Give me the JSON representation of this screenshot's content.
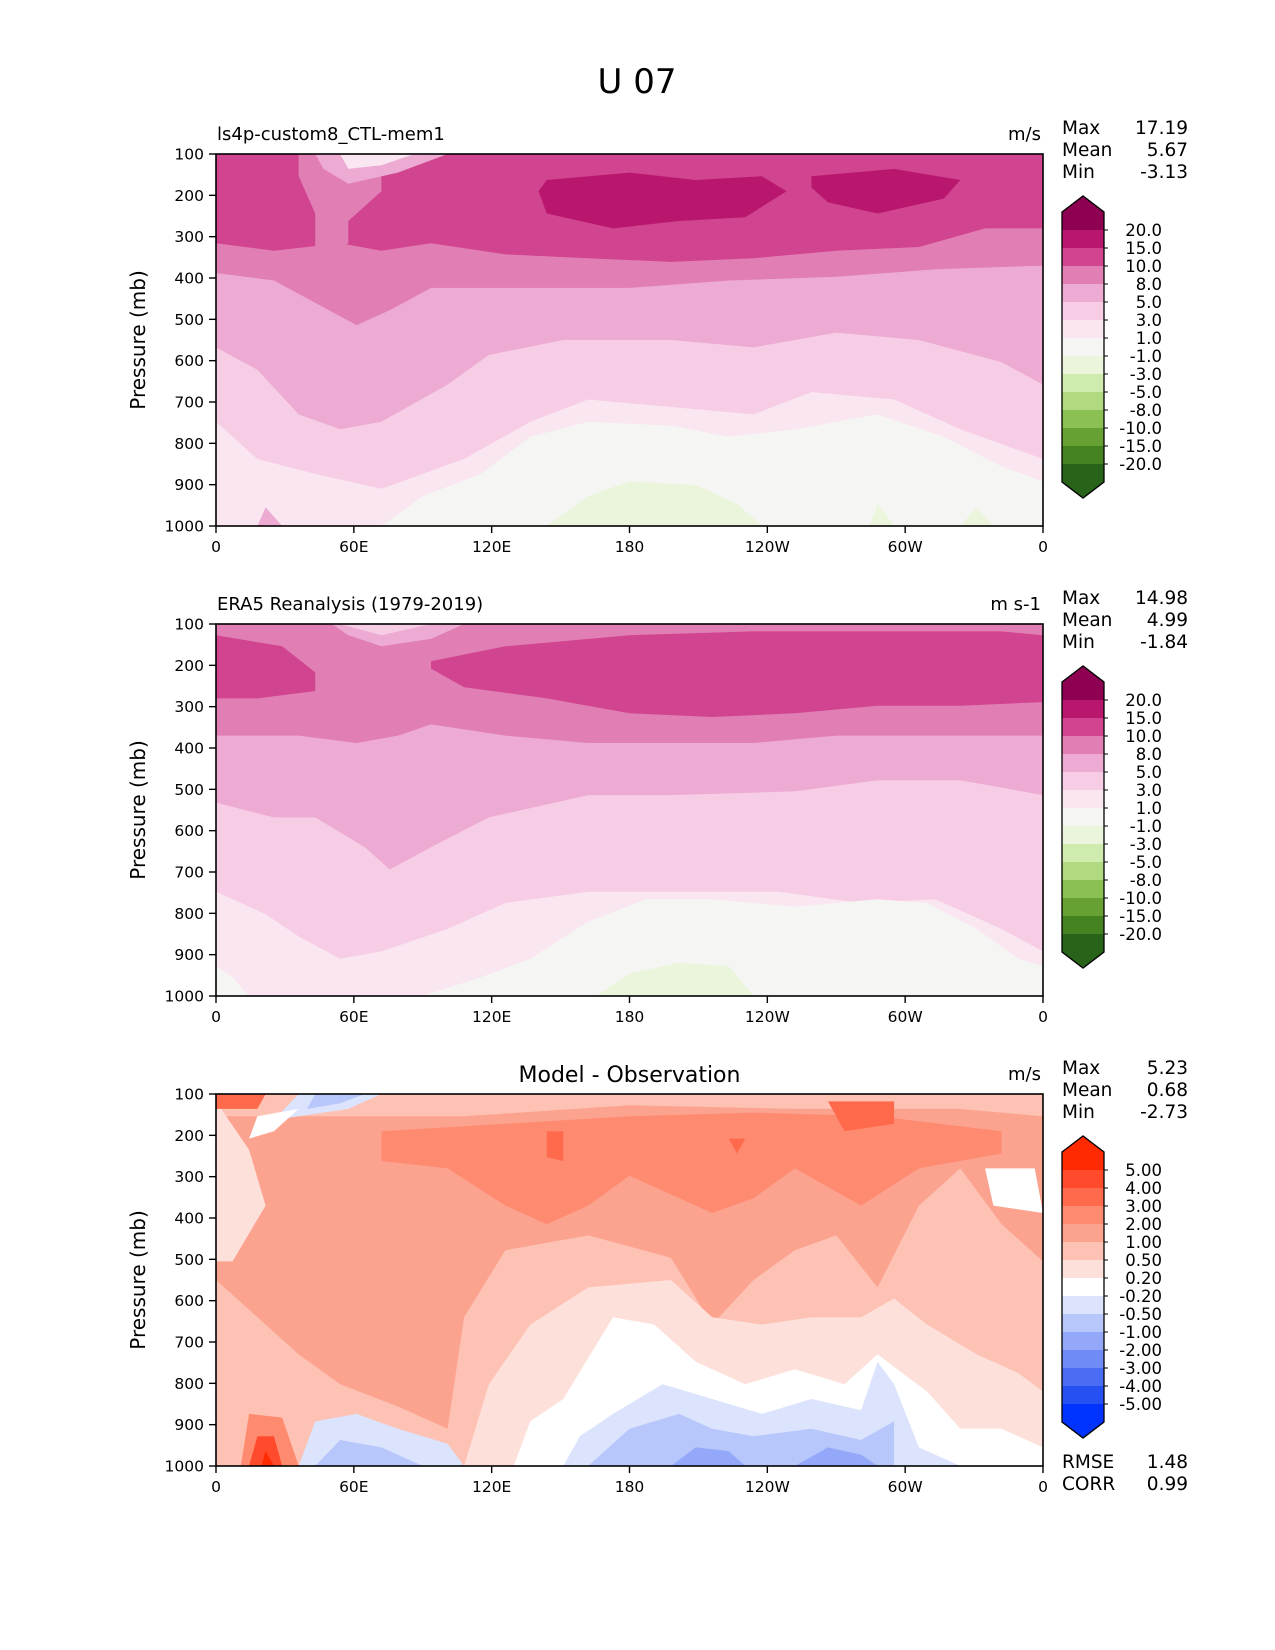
{
  "figure": {
    "suptitle": "U 07"
  },
  "chart_data": [
    {
      "type": "heatmap",
      "subtype": "filled-contour",
      "panel": "model",
      "title": "ls4p-custom8_CTL-mem1",
      "units": "m/s",
      "xlabel": "",
      "ylabel": "Pressure (mb)",
      "x_ticks": [
        "0",
        "60E",
        "120E",
        "180",
        "120W",
        "60W",
        "0"
      ],
      "x_tick_values": [
        0,
        60,
        120,
        180,
        240,
        300,
        360
      ],
      "xlim": [
        0,
        360
      ],
      "y_ticks": [
        "100",
        "200",
        "300",
        "400",
        "500",
        "600",
        "700",
        "800",
        "900",
        "1000"
      ],
      "y_tick_values": [
        100,
        200,
        300,
        400,
        500,
        600,
        700,
        800,
        900,
        1000
      ],
      "ylim": [
        1000,
        100
      ],
      "stats": {
        "Max": "17.19",
        "Mean": "5.67",
        "Min": "-3.13"
      },
      "colorbar": {
        "extend": "both",
        "levels": [
          "20.0",
          "15.0",
          "10.0",
          "8.0",
          "5.0",
          "3.0",
          "1.0",
          "-1.0",
          "-3.0",
          "-5.0",
          "-8.0",
          "-10.0",
          "-15.0",
          "-20.0"
        ],
        "colors": [
          "#8e0152",
          "#b8176d",
          "#d1448f",
          "#e17eb3",
          "#edaad3",
          "#f7cde5",
          "#fae6f0",
          "#f5f5f3",
          "#eaf5dc",
          "#d0ebae",
          "#b1da80",
          "#8bc152",
          "#67a133",
          "#44831f",
          "#276419"
        ]
      },
      "grid": false,
      "description": "Zonal wind: jet max (15-20 m/s) near 200 mb over 150E-120W and 80W-40W; 10-15 m/s band 100-320 mb; decreasing with depth to weak easterlies (-1 to -3) near surface 150E-150W."
    },
    {
      "type": "heatmap",
      "subtype": "filled-contour",
      "panel": "observation",
      "title": "ERA5 Reanalysis (1979-2019)",
      "units": "m s-1",
      "xlabel": "",
      "ylabel": "Pressure (mb)",
      "x_ticks": [
        "0",
        "60E",
        "120E",
        "180",
        "120W",
        "60W",
        "0"
      ],
      "x_tick_values": [
        0,
        60,
        120,
        180,
        240,
        300,
        360
      ],
      "xlim": [
        0,
        360
      ],
      "y_ticks": [
        "100",
        "200",
        "300",
        "400",
        "500",
        "600",
        "700",
        "800",
        "900",
        "1000"
      ],
      "y_tick_values": [
        100,
        200,
        300,
        400,
        500,
        600,
        700,
        800,
        900,
        1000
      ],
      "ylim": [
        1000,
        100
      ],
      "stats": {
        "Max": "14.98",
        "Mean": "4.99",
        "Min": "-1.84"
      },
      "colorbar": {
        "extend": "both",
        "levels": [
          "20.0",
          "15.0",
          "10.0",
          "8.0",
          "5.0",
          "3.0",
          "1.0",
          "-1.0",
          "-3.0",
          "-5.0",
          "-8.0",
          "-10.0",
          "-15.0",
          "-20.0"
        ],
        "colors": [
          "#8e0152",
          "#b8176d",
          "#d1448f",
          "#e17eb3",
          "#edaad3",
          "#f7cde5",
          "#fae6f0",
          "#f5f5f3",
          "#eaf5dc",
          "#d0ebae",
          "#b1da80",
          "#8bc152",
          "#67a133",
          "#44831f",
          "#276419"
        ]
      },
      "grid": false,
      "description": "Zonal wind: 10-15 m/s band 100-300 mb (split near 40E-90E); decreasing downward; weak easterly (-1 to -3) patch near surface ~160E-160W."
    },
    {
      "type": "heatmap",
      "subtype": "filled-contour",
      "panel": "difference",
      "title": "Model - Observation",
      "units": "m/s",
      "xlabel": "",
      "ylabel": "Pressure (mb)",
      "x_ticks": [
        "0",
        "60E",
        "120E",
        "180",
        "120W",
        "60W",
        "0"
      ],
      "x_tick_values": [
        0,
        60,
        120,
        180,
        240,
        300,
        360
      ],
      "xlim": [
        0,
        360
      ],
      "y_ticks": [
        "100",
        "200",
        "300",
        "400",
        "500",
        "600",
        "700",
        "800",
        "900",
        "1000"
      ],
      "y_tick_values": [
        100,
        200,
        300,
        400,
        500,
        600,
        700,
        800,
        900,
        1000
      ],
      "ylim": [
        1000,
        100
      ],
      "stats": {
        "Max": "5.23",
        "Mean": "0.68",
        "Min": "-2.73"
      },
      "metrics": {
        "RMSE": "1.48",
        "CORR": "0.99"
      },
      "colorbar": {
        "extend": "both",
        "levels": [
          "5.00",
          "4.00",
          "3.00",
          "2.00",
          "1.00",
          "0.50",
          "0.20",
          "-0.20",
          "-0.50",
          "-1.00",
          "-2.00",
          "-3.00",
          "-4.00",
          "-5.00"
        ],
        "colors": [
          "#ff2a00",
          "#ff4a2b",
          "#ff6a4d",
          "#fe8a70",
          "#fca390",
          "#fdc2b4",
          "#fee0da",
          "#ffffff",
          "#dbe3fd",
          "#b7c6fb",
          "#93a8f8",
          "#6f8bf6",
          "#4a6df3",
          "#2650f1",
          "#0033ff"
        ]
      },
      "grid": false,
      "description": "Mostly positive bias (0.5-3 m/s) through the column; max (>4) near surface 15-35E; negative bias (-0.5 to -2) near surface 60E-60W and aloft near 45E-75E at 100-150 mb."
    }
  ]
}
